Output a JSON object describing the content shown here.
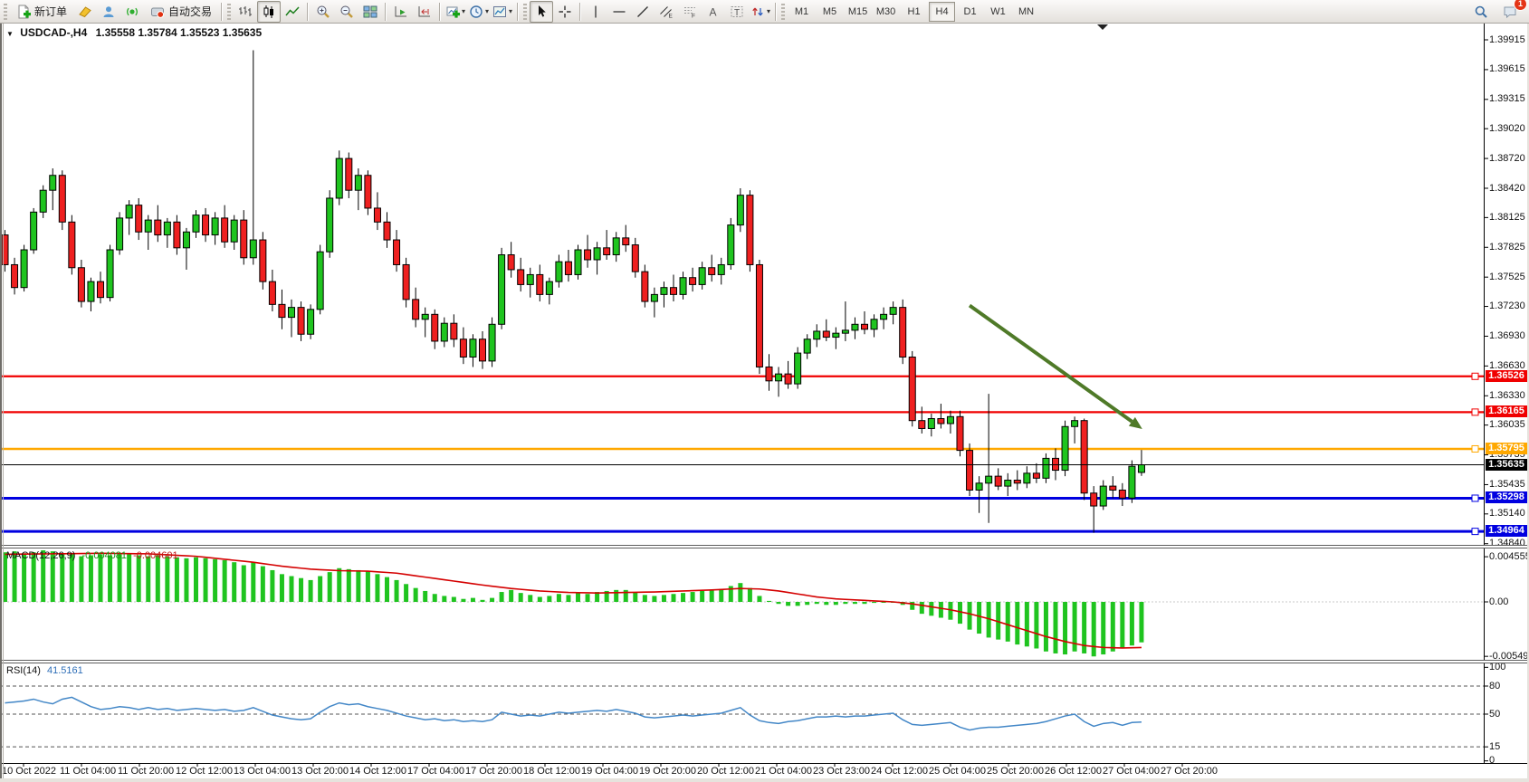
{
  "toolbar": {
    "new_order_label": "新订单",
    "auto_trading_label": "自动交易",
    "timeframes": [
      "M1",
      "M5",
      "M15",
      "M30",
      "H1",
      "H4",
      "D1",
      "W1",
      "MN"
    ],
    "active_timeframe": "H4",
    "notification_badge": "1"
  },
  "chart_header": {
    "symbol": "USDCAD-,H4",
    "ohlc": "1.35558 1.35784 1.35523 1.35635"
  },
  "price_axis": {
    "labels": [
      "1.39915",
      "1.39615",
      "1.39315",
      "1.39020",
      "1.38720",
      "1.38420",
      "1.38125",
      "1.37825",
      "1.37525",
      "1.37230",
      "1.36930",
      "1.36630",
      "1.36330",
      "1.36035",
      "1.35735",
      "1.35435",
      "1.35140",
      "1.34840"
    ],
    "values": [
      1.39915,
      1.39615,
      1.39315,
      1.3902,
      1.3872,
      1.3842,
      1.38125,
      1.37825,
      1.37525,
      1.3723,
      1.3693,
      1.3663,
      1.3633,
      1.36035,
      1.35735,
      1.35435,
      1.3514,
      1.3484
    ]
  },
  "hlines": [
    {
      "label": "1.36526",
      "price": 1.36526,
      "color": "#f00000",
      "width": 2.2
    },
    {
      "label": "1.36165",
      "price": 1.36165,
      "color": "#f00000",
      "width": 2.2
    },
    {
      "label": "1.35795",
      "price": 1.35795,
      "color": "#ffa800",
      "width": 2.5
    },
    {
      "label": "1.35298",
      "price": 1.35298,
      "color": "#0000e0",
      "width": 3
    },
    {
      "label": "1.34964",
      "price": 1.34964,
      "color": "#0000e0",
      "width": 3
    }
  ],
  "current_price": {
    "label": "1.35635",
    "value": 1.35635,
    "tag_bg": "#000000"
  },
  "macd": {
    "name": "MACD(12,26,9)",
    "value_main": "-0.004081",
    "value_signal": "-0.004601",
    "axis_labels": [
      "0.004555",
      "0.00",
      "-0.005493"
    ],
    "axis_values": [
      0.004555,
      0,
      -0.005493
    ]
  },
  "rsi": {
    "name": "RSI(14)",
    "value": "41.5161",
    "axis_labels": [
      "100",
      "80",
      "50",
      "15",
      "0"
    ],
    "axis_values": [
      100,
      80,
      50,
      15,
      0
    ],
    "dashed_levels": [
      80,
      50,
      15
    ]
  },
  "date_axis": {
    "labels": [
      "10 Oct 2022",
      "11 Oct 04:00",
      "11 Oct 20:00",
      "12 Oct 12:00",
      "13 Oct 04:00",
      "13 Oct 20:00",
      "14 Oct 12:00",
      "17 Oct 04:00",
      "17 Oct 20:00",
      "18 Oct 12:00",
      "19 Oct 04:00",
      "19 Oct 20:00",
      "20 Oct 12:00",
      "21 Oct 04:00",
      "23 Oct 23:00",
      "24 Oct 12:00",
      "25 Oct 04:00",
      "25 Oct 20:00",
      "26 Oct 12:00",
      "27 Oct 04:00",
      "27 Oct 20:00"
    ]
  },
  "colors": {
    "bull_candle": "#1fc41f",
    "bear_candle": "#ef2020",
    "candle_outline": "#000000",
    "macd_histogram": "#1fc41f",
    "macd_signal": "#d40000",
    "rsi_line": "#4387c7",
    "trend_arrow": "#4f7a28",
    "axis_line": "#000000"
  },
  "chart_data": {
    "type": "candlestick",
    "symbol": "USDCAD",
    "timeframe": "H4",
    "title": "USDCAD-,H4 1.35558 1.35784 1.35523 1.35635",
    "price_range": [
      1.3484,
      1.39915
    ],
    "candles": [
      [
        1.3795,
        1.38,
        1.3758,
        1.3765
      ],
      [
        1.3765,
        1.3772,
        1.3735,
        1.3742
      ],
      [
        1.3742,
        1.3785,
        1.3738,
        1.378
      ],
      [
        1.378,
        1.3822,
        1.3776,
        1.3818
      ],
      [
        1.3818,
        1.3845,
        1.3812,
        1.384
      ],
      [
        1.384,
        1.3862,
        1.382,
        1.3855
      ],
      [
        1.3855,
        1.386,
        1.38,
        1.3808
      ],
      [
        1.3808,
        1.3815,
        1.3755,
        1.3762
      ],
      [
        1.3762,
        1.377,
        1.3722,
        1.3728
      ],
      [
        1.3728,
        1.3752,
        1.3718,
        1.3748
      ],
      [
        1.3748,
        1.3758,
        1.3726,
        1.3732
      ],
      [
        1.3732,
        1.3785,
        1.3728,
        1.378
      ],
      [
        1.378,
        1.3818,
        1.3775,
        1.3812
      ],
      [
        1.3812,
        1.383,
        1.3795,
        1.3825
      ],
      [
        1.3825,
        1.3832,
        1.379,
        1.3798
      ],
      [
        1.3798,
        1.3815,
        1.378,
        1.381
      ],
      [
        1.381,
        1.3825,
        1.3788,
        1.3795
      ],
      [
        1.3795,
        1.3812,
        1.3782,
        1.3808
      ],
      [
        1.3808,
        1.3815,
        1.3775,
        1.3782
      ],
      [
        1.3782,
        1.3802,
        1.376,
        1.3798
      ],
      [
        1.3798,
        1.382,
        1.3792,
        1.3815
      ],
      [
        1.3815,
        1.3822,
        1.3788,
        1.3795
      ],
      [
        1.3795,
        1.3818,
        1.3785,
        1.3812
      ],
      [
        1.3812,
        1.3825,
        1.3782,
        1.3788
      ],
      [
        1.3788,
        1.3815,
        1.378,
        1.381
      ],
      [
        1.381,
        1.382,
        1.3765,
        1.3772
      ],
      [
        1.3772,
        1.3981,
        1.3765,
        1.379
      ],
      [
        1.379,
        1.3798,
        1.374,
        1.3748
      ],
      [
        1.3748,
        1.376,
        1.3718,
        1.3725
      ],
      [
        1.3725,
        1.374,
        1.37,
        1.3712
      ],
      [
        1.3712,
        1.373,
        1.3692,
        1.3722
      ],
      [
        1.3722,
        1.3728,
        1.3688,
        1.3695
      ],
      [
        1.3695,
        1.3725,
        1.369,
        1.372
      ],
      [
        1.372,
        1.3785,
        1.3715,
        1.3778
      ],
      [
        1.3778,
        1.384,
        1.3772,
        1.3832
      ],
      [
        1.3832,
        1.388,
        1.3825,
        1.3872
      ],
      [
        1.3872,
        1.3878,
        1.3832,
        1.384
      ],
      [
        1.384,
        1.3862,
        1.382,
        1.3855
      ],
      [
        1.3855,
        1.386,
        1.3815,
        1.3822
      ],
      [
        1.3822,
        1.3838,
        1.38,
        1.3808
      ],
      [
        1.3808,
        1.3818,
        1.3782,
        1.379
      ],
      [
        1.379,
        1.38,
        1.3758,
        1.3765
      ],
      [
        1.3765,
        1.3772,
        1.3722,
        1.373
      ],
      [
        1.373,
        1.3742,
        1.3702,
        1.371
      ],
      [
        1.371,
        1.3722,
        1.3692,
        1.3715
      ],
      [
        1.3715,
        1.372,
        1.368,
        1.3688
      ],
      [
        1.3688,
        1.3712,
        1.3682,
        1.3706
      ],
      [
        1.3706,
        1.3715,
        1.3682,
        1.369
      ],
      [
        1.369,
        1.3702,
        1.3665,
        1.3672
      ],
      [
        1.3672,
        1.3695,
        1.3662,
        1.369
      ],
      [
        1.369,
        1.3698,
        1.366,
        1.3668
      ],
      [
        1.3668,
        1.3712,
        1.3662,
        1.3705
      ],
      [
        1.3705,
        1.3782,
        1.37,
        1.3775
      ],
      [
        1.3775,
        1.3788,
        1.3752,
        1.376
      ],
      [
        1.376,
        1.3772,
        1.3738,
        1.3745
      ],
      [
        1.3745,
        1.3762,
        1.3732,
        1.3755
      ],
      [
        1.3755,
        1.3765,
        1.3728,
        1.3735
      ],
      [
        1.3735,
        1.3752,
        1.3725,
        1.3748
      ],
      [
        1.3748,
        1.3775,
        1.3742,
        1.3768
      ],
      [
        1.3768,
        1.378,
        1.3748,
        1.3755
      ],
      [
        1.3755,
        1.3785,
        1.375,
        1.378
      ],
      [
        1.378,
        1.3795,
        1.3762,
        1.377
      ],
      [
        1.377,
        1.3788,
        1.3755,
        1.3782
      ],
      [
        1.3782,
        1.38,
        1.377,
        1.3775
      ],
      [
        1.3775,
        1.3798,
        1.3768,
        1.3792
      ],
      [
        1.3792,
        1.3805,
        1.3778,
        1.3785
      ],
      [
        1.3785,
        1.3792,
        1.3752,
        1.3758
      ],
      [
        1.3758,
        1.3765,
        1.3722,
        1.3728
      ],
      [
        1.3728,
        1.3742,
        1.3712,
        1.3735
      ],
      [
        1.3735,
        1.3748,
        1.3722,
        1.3742
      ],
      [
        1.3742,
        1.3755,
        1.3728,
        1.3735
      ],
      [
        1.3735,
        1.3758,
        1.373,
        1.3752
      ],
      [
        1.3752,
        1.3762,
        1.3738,
        1.3745
      ],
      [
        1.3745,
        1.3768,
        1.374,
        1.3762
      ],
      [
        1.3762,
        1.3775,
        1.3748,
        1.3755
      ],
      [
        1.3755,
        1.3772,
        1.3745,
        1.3765
      ],
      [
        1.3765,
        1.3812,
        1.376,
        1.3805
      ],
      [
        1.3805,
        1.3842,
        1.3798,
        1.3835
      ],
      [
        1.3835,
        1.384,
        1.3758,
        1.3765
      ],
      [
        1.3765,
        1.377,
        1.3655,
        1.3662
      ],
      [
        1.3662,
        1.3675,
        1.3638,
        1.3648
      ],
      [
        1.3648,
        1.3662,
        1.3632,
        1.3655
      ],
      [
        1.3655,
        1.3668,
        1.364,
        1.3645
      ],
      [
        1.3645,
        1.3682,
        1.364,
        1.3676
      ],
      [
        1.3676,
        1.3695,
        1.367,
        1.369
      ],
      [
        1.369,
        1.3705,
        1.3682,
        1.3698
      ],
      [
        1.3698,
        1.371,
        1.3688,
        1.3692
      ],
      [
        1.3692,
        1.3702,
        1.368,
        1.3696
      ],
      [
        1.3696,
        1.3728,
        1.3688,
        1.3699
      ],
      [
        1.3699,
        1.3712,
        1.369,
        1.3705
      ],
      [
        1.3705,
        1.3718,
        1.3695,
        1.37
      ],
      [
        1.37,
        1.3715,
        1.3692,
        1.371
      ],
      [
        1.371,
        1.3722,
        1.37,
        1.3715
      ],
      [
        1.3715,
        1.3728,
        1.3705,
        1.3722
      ],
      [
        1.3722,
        1.373,
        1.3665,
        1.3672
      ],
      [
        1.3672,
        1.3678,
        1.3602,
        1.3608
      ],
      [
        1.3608,
        1.3622,
        1.3595,
        1.36
      ],
      [
        1.36,
        1.3615,
        1.3592,
        1.361
      ],
      [
        1.361,
        1.3625,
        1.36,
        1.3605
      ],
      [
        1.3605,
        1.3618,
        1.3595,
        1.3612
      ],
      [
        1.3612,
        1.3618,
        1.3572,
        1.3578
      ],
      [
        1.3578,
        1.3585,
        1.3532,
        1.3538
      ],
      [
        1.3538,
        1.3552,
        1.3515,
        1.3545
      ],
      [
        1.3545,
        1.3635,
        1.3505,
        1.3552
      ],
      [
        1.3552,
        1.356,
        1.3538,
        1.3542
      ],
      [
        1.3542,
        1.3555,
        1.3532,
        1.3548
      ],
      [
        1.3548,
        1.3558,
        1.3538,
        1.3545
      ],
      [
        1.3545,
        1.3562,
        1.354,
        1.3555
      ],
      [
        1.3555,
        1.3565,
        1.3545,
        1.355
      ],
      [
        1.355,
        1.3575,
        1.3545,
        1.357
      ],
      [
        1.357,
        1.358,
        1.3548,
        1.3558
      ],
      [
        1.3558,
        1.3608,
        1.3552,
        1.3602
      ],
      [
        1.3602,
        1.3612,
        1.3585,
        1.3608
      ],
      [
        1.3608,
        1.361,
        1.3528,
        1.3535
      ],
      [
        1.3535,
        1.3542,
        1.3495,
        1.3522
      ],
      [
        1.3522,
        1.3548,
        1.3518,
        1.3542
      ],
      [
        1.3542,
        1.3552,
        1.353,
        1.3538
      ],
      [
        1.3538,
        1.3545,
        1.3522,
        1.353
      ],
      [
        1.353,
        1.3568,
        1.3525,
        1.3562
      ],
      [
        1.35558,
        1.35784,
        1.35523,
        1.35635
      ]
    ],
    "macd_histogram": [
      0.005,
      0.0051,
      0.0049,
      0.005,
      0.0052,
      0.0051,
      0.0049,
      0.0048,
      0.0046,
      0.0047,
      0.0048,
      0.0047,
      0.0048,
      0.0049,
      0.0047,
      0.0046,
      0.0047,
      0.0046,
      0.0045,
      0.0044,
      0.0045,
      0.0044,
      0.0043,
      0.0042,
      0.004,
      0.0037,
      0.004,
      0.0036,
      0.0032,
      0.0028,
      0.0026,
      0.0024,
      0.0022,
      0.0026,
      0.003,
      0.0034,
      0.0033,
      0.0032,
      0.0031,
      0.0028,
      0.0025,
      0.0022,
      0.0018,
      0.0014,
      0.0011,
      0.0008,
      0.0006,
      0.0005,
      0.0003,
      0.0004,
      0.0002,
      0.0004,
      0.001,
      0.0012,
      0.0009,
      0.0007,
      0.0005,
      0.0006,
      0.0008,
      0.0007,
      0.0009,
      0.0008,
      0.001,
      0.0011,
      0.0012,
      0.0012,
      0.001,
      0.0007,
      0.0006,
      0.0007,
      0.0008,
      0.0009,
      0.001,
      0.0011,
      0.0012,
      0.0013,
      0.0016,
      0.0019,
      0.0014,
      0.0006,
      0.0001,
      -0.0002,
      -0.0004,
      -0.0004,
      -0.0003,
      -0.0002,
      -0.0003,
      -0.0003,
      -0.0002,
      -0.0002,
      -0.0002,
      -0.0001,
      0.0,
      0.0,
      -0.0003,
      -0.0008,
      -0.0012,
      -0.0014,
      -0.0016,
      -0.0018,
      -0.0022,
      -0.0028,
      -0.0032,
      -0.0036,
      -0.0038,
      -0.004,
      -0.0043,
      -0.0045,
      -0.0047,
      -0.005,
      -0.0052,
      -0.0053,
      -0.005,
      -0.0052,
      -0.0055,
      -0.0053,
      -0.005,
      -0.0047,
      -0.0044,
      -0.004081
    ],
    "macd_signal_keypoints": [
      [
        0,
        0.0048
      ],
      [
        5,
        0.00485
      ],
      [
        10,
        0.0049
      ],
      [
        15,
        0.00485
      ],
      [
        20,
        0.0046
      ],
      [
        23,
        0.0043
      ],
      [
        26,
        0.004
      ],
      [
        29,
        0.0036
      ],
      [
        32,
        0.0033
      ],
      [
        35,
        0.00315
      ],
      [
        38,
        0.0031
      ],
      [
        41,
        0.0029
      ],
      [
        44,
        0.0025
      ],
      [
        47,
        0.0021
      ],
      [
        50,
        0.0017
      ],
      [
        53,
        0.00135
      ],
      [
        56,
        0.0011
      ],
      [
        59,
        0.00095
      ],
      [
        62,
        0.0009
      ],
      [
        65,
        0.00095
      ],
      [
        68,
        0.001
      ],
      [
        71,
        0.0011
      ],
      [
        74,
        0.0012
      ],
      [
        77,
        0.00135
      ],
      [
        79,
        0.0013
      ],
      [
        81,
        0.0011
      ],
      [
        83,
        0.0008
      ],
      [
        85,
        0.0005
      ],
      [
        87,
        0.0003
      ],
      [
        89,
        0.0002
      ],
      [
        91,
        0.0001
      ],
      [
        93,
        0.0
      ],
      [
        95,
        -0.0002
      ],
      [
        97,
        -0.0005
      ],
      [
        99,
        -0.0008
      ],
      [
        101,
        -0.0012
      ],
      [
        103,
        -0.0017
      ],
      [
        105,
        -0.0023
      ],
      [
        107,
        -0.0029
      ],
      [
        109,
        -0.0035
      ],
      [
        111,
        -0.004
      ],
      [
        113,
        -0.0044
      ],
      [
        115,
        -0.0046
      ],
      [
        117,
        -0.00465
      ],
      [
        119,
        -0.004601
      ]
    ],
    "rsi_values": [
      62,
      63,
      64,
      66,
      63,
      61,
      66,
      68,
      63,
      58,
      55,
      56,
      58,
      57,
      55,
      57,
      55,
      56,
      54,
      55,
      56,
      55,
      54,
      55,
      53,
      54,
      57,
      53,
      49,
      47,
      45,
      44,
      45,
      52,
      58,
      62,
      60,
      61,
      58,
      56,
      54,
      51,
      48,
      46,
      44,
      45,
      43,
      44,
      42,
      43,
      42,
      44,
      52,
      50,
      48,
      49,
      48,
      50,
      52,
      51,
      52,
      53,
      54,
      53,
      55,
      53,
      51,
      47,
      46,
      47,
      48,
      49,
      48,
      49,
      50,
      51,
      54,
      57,
      49,
      43,
      41,
      40,
      42,
      43,
      45,
      47,
      47,
      48,
      47,
      48,
      48,
      49,
      50,
      51,
      44,
      39,
      38,
      39,
      40,
      41,
      36,
      33,
      35,
      36,
      36,
      37,
      38,
      39,
      40,
      42,
      45,
      48,
      50,
      42,
      37,
      40,
      41,
      38,
      41,
      41.5161
    ],
    "trend_arrow": {
      "from_bar": 101,
      "from_price": 1.3724,
      "to_bar": 118,
      "to_price": 1.3607
    }
  }
}
